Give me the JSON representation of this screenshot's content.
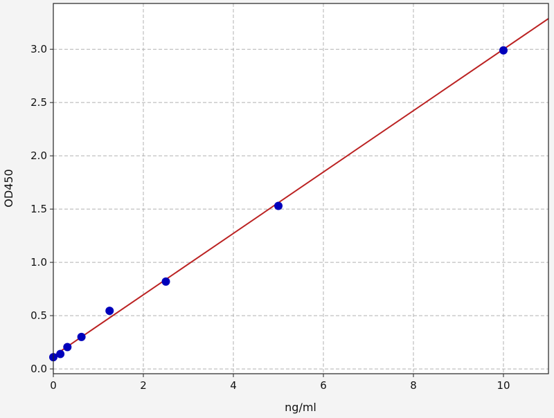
{
  "chart_data": {
    "type": "scatter",
    "title": "",
    "xlabel": "ng/ml",
    "ylabel": "OD450",
    "xlim": [
      0,
      11
    ],
    "ylim": [
      -0.045,
      3.43
    ],
    "xticks": [
      0,
      2,
      4,
      6,
      8,
      10
    ],
    "yticks": [
      0.0,
      0.5,
      1.0,
      1.5,
      2.0,
      2.5,
      3.0
    ],
    "xtick_labels": [
      "0",
      "2",
      "4",
      "6",
      "8",
      "10"
    ],
    "ytick_labels": [
      "0.0",
      "0.5",
      "1.0",
      "1.5",
      "2.0",
      "2.5",
      "3.0"
    ],
    "grid": true,
    "points": {
      "x": [
        0,
        0.156,
        0.3125,
        0.625,
        1.25,
        2.5,
        5,
        10
      ],
      "y": [
        0.11,
        0.14,
        0.205,
        0.3,
        0.545,
        0.82,
        1.53,
        2.99
      ],
      "color": "#0000bb"
    },
    "fit_line": {
      "intercept": 0.12,
      "slope": 0.288,
      "color": "#bb2222"
    }
  }
}
